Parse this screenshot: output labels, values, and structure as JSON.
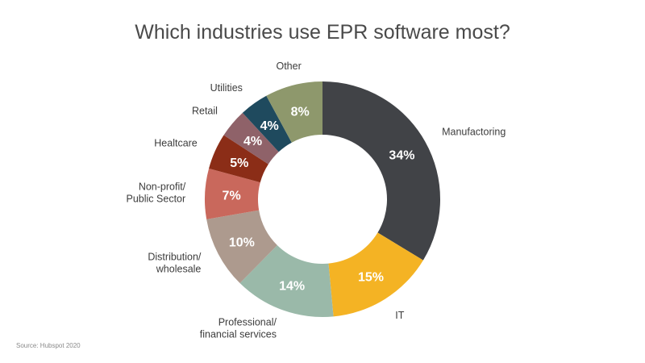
{
  "title": "Which industries use EPR software most?",
  "source": "Source: Hubspot 2020",
  "chart_data": {
    "type": "pie",
    "title": "Which industries use EPR software most?",
    "donut": true,
    "start_angle_deg": 0,
    "direction": "clockwise",
    "slices": [
      {
        "category": [
          "Manufactoring"
        ],
        "value": 34,
        "label": "34%",
        "color": "#414347"
      },
      {
        "category": [
          "IT"
        ],
        "value": 15,
        "label": "15%",
        "color": "#f4b324"
      },
      {
        "category": [
          "Professional/",
          "financial services"
        ],
        "value": 14,
        "label": "14%",
        "color": "#9ab9a9"
      },
      {
        "category": [
          "Distribution/",
          "wholesale"
        ],
        "value": 10,
        "label": "10%",
        "color": "#ad9a8e"
      },
      {
        "category": [
          "Non-profit/",
          "Public Sector"
        ],
        "value": 7,
        "label": "7%",
        "color": "#c9685c"
      },
      {
        "category": [
          "Healtcare"
        ],
        "value": 5,
        "label": "5%",
        "color": "#8b2d17"
      },
      {
        "category": [
          "Retail"
        ],
        "value": 4,
        "label": "4%",
        "color": "#8f6269"
      },
      {
        "category": [
          "Utilities"
        ],
        "value": 4,
        "label": "4%",
        "color": "#1f4a5e"
      },
      {
        "category": [
          "Other"
        ],
        "value": 8,
        "label": "8%",
        "color": "#8e986c"
      }
    ]
  }
}
